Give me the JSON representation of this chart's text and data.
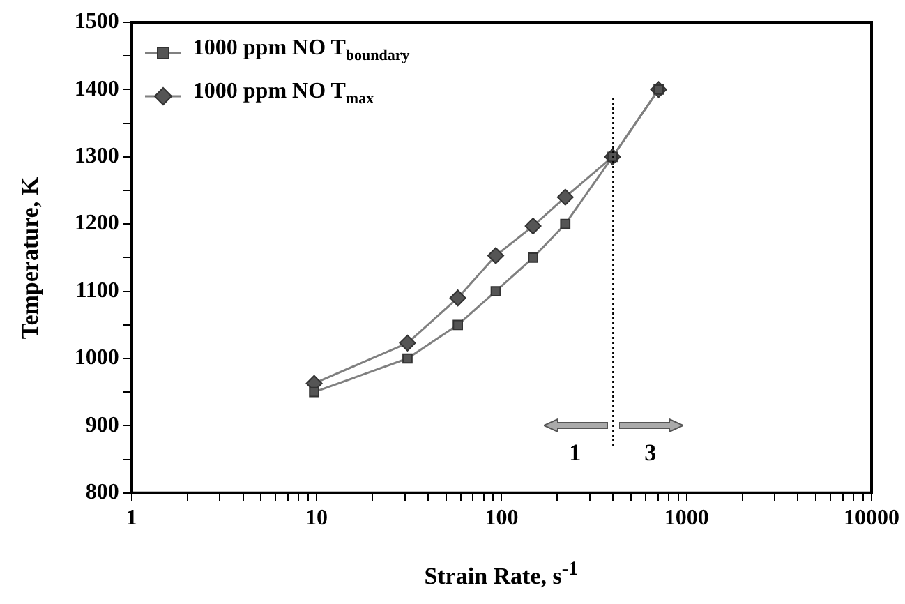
{
  "chart_data": {
    "type": "line",
    "xlabel": "Strain Rate, s$^{-1}$",
    "ylabel": "Temperature, K",
    "log": "x",
    "grid": false,
    "legend": "top left",
    "line_style": "solid",
    "xlim": [
      1,
      10000
    ],
    "xticks": [
      1,
      {
        "value": 2,
        "label": null
      },
      {
        "value": 3,
        "label": null
      },
      {
        "value": 4,
        "label": null
      },
      {
        "value": 5,
        "label": null
      },
      {
        "value": 6,
        "label": null
      },
      {
        "value": 7,
        "label": null
      },
      {
        "value": 8,
        "label": null
      },
      {
        "value": 9,
        "label": null
      },
      10,
      {
        "value": 20,
        "label": null
      },
      {
        "value": 30,
        "label": null
      },
      {
        "value": 40,
        "label": null
      },
      {
        "value": 50,
        "label": null
      },
      {
        "value": 60,
        "label": null
      },
      {
        "value": 70,
        "label": null
      },
      {
        "value": 80,
        "label": null
      },
      {
        "value": 90,
        "label": null
      },
      100,
      {
        "value": 200,
        "label": null
      },
      {
        "value": 300,
        "label": null
      },
      {
        "value": 400,
        "label": null
      },
      {
        "value": 500,
        "label": null
      },
      {
        "value": 600,
        "label": null
      },
      {
        "value": 700,
        "label": null
      },
      {
        "value": 800,
        "label": null
      },
      {
        "value": 900,
        "label": null
      },
      1000,
      {
        "value": 2000,
        "label": null
      },
      {
        "value": 3000,
        "label": null
      },
      {
        "value": 4000,
        "label": null
      },
      {
        "value": 5000,
        "label": null
      },
      {
        "value": 6000,
        "label": null
      },
      {
        "value": 7000,
        "label": null
      },
      {
        "value": 8000,
        "label": null
      },
      {
        "value": 9000,
        "label": null
      },
      10000
    ],
    "ylim": [
      800,
      1500
    ],
    "yticks": [
      800,
      {
        "value": 850,
        "label": null
      },
      900,
      {
        "value": 950,
        "label": null
      },
      1000,
      {
        "value": 1050,
        "label": null
      },
      1100,
      {
        "value": 1150,
        "label": null
      },
      1200,
      {
        "value": 1250,
        "label": null
      },
      1300,
      {
        "value": 1350,
        "label": null
      },
      1400,
      {
        "value": 1450,
        "label": null
      },
      1500
    ],
    "series": [
      {
        "name": "1000 ppm NO T$_{boundary}$",
        "color": "#555555",
        "marker": "square",
        "x": [
          9.7,
          31,
          58,
          93,
          148,
          221,
          398,
          706
        ],
        "values": [
          950,
          1000,
          1050,
          1100,
          1150,
          1200,
          1300,
          1400
        ]
      },
      {
        "name": "1000 ppm NO T$_{max}$",
        "color": "#555555",
        "marker": "diamond",
        "x": [
          9.7,
          31,
          58,
          93,
          148,
          221,
          398,
          706
        ],
        "values": [
          963,
          1023,
          1090,
          1153,
          1197,
          1240,
          1300,
          1400
        ]
      }
    ],
    "ref_lines": [
      {
        "axis": "x",
        "value": 400,
        "line_style": "dotted",
        "color": "#000000"
      }
    ],
    "annotations": [
      "1",
      "3"
    ]
  }
}
